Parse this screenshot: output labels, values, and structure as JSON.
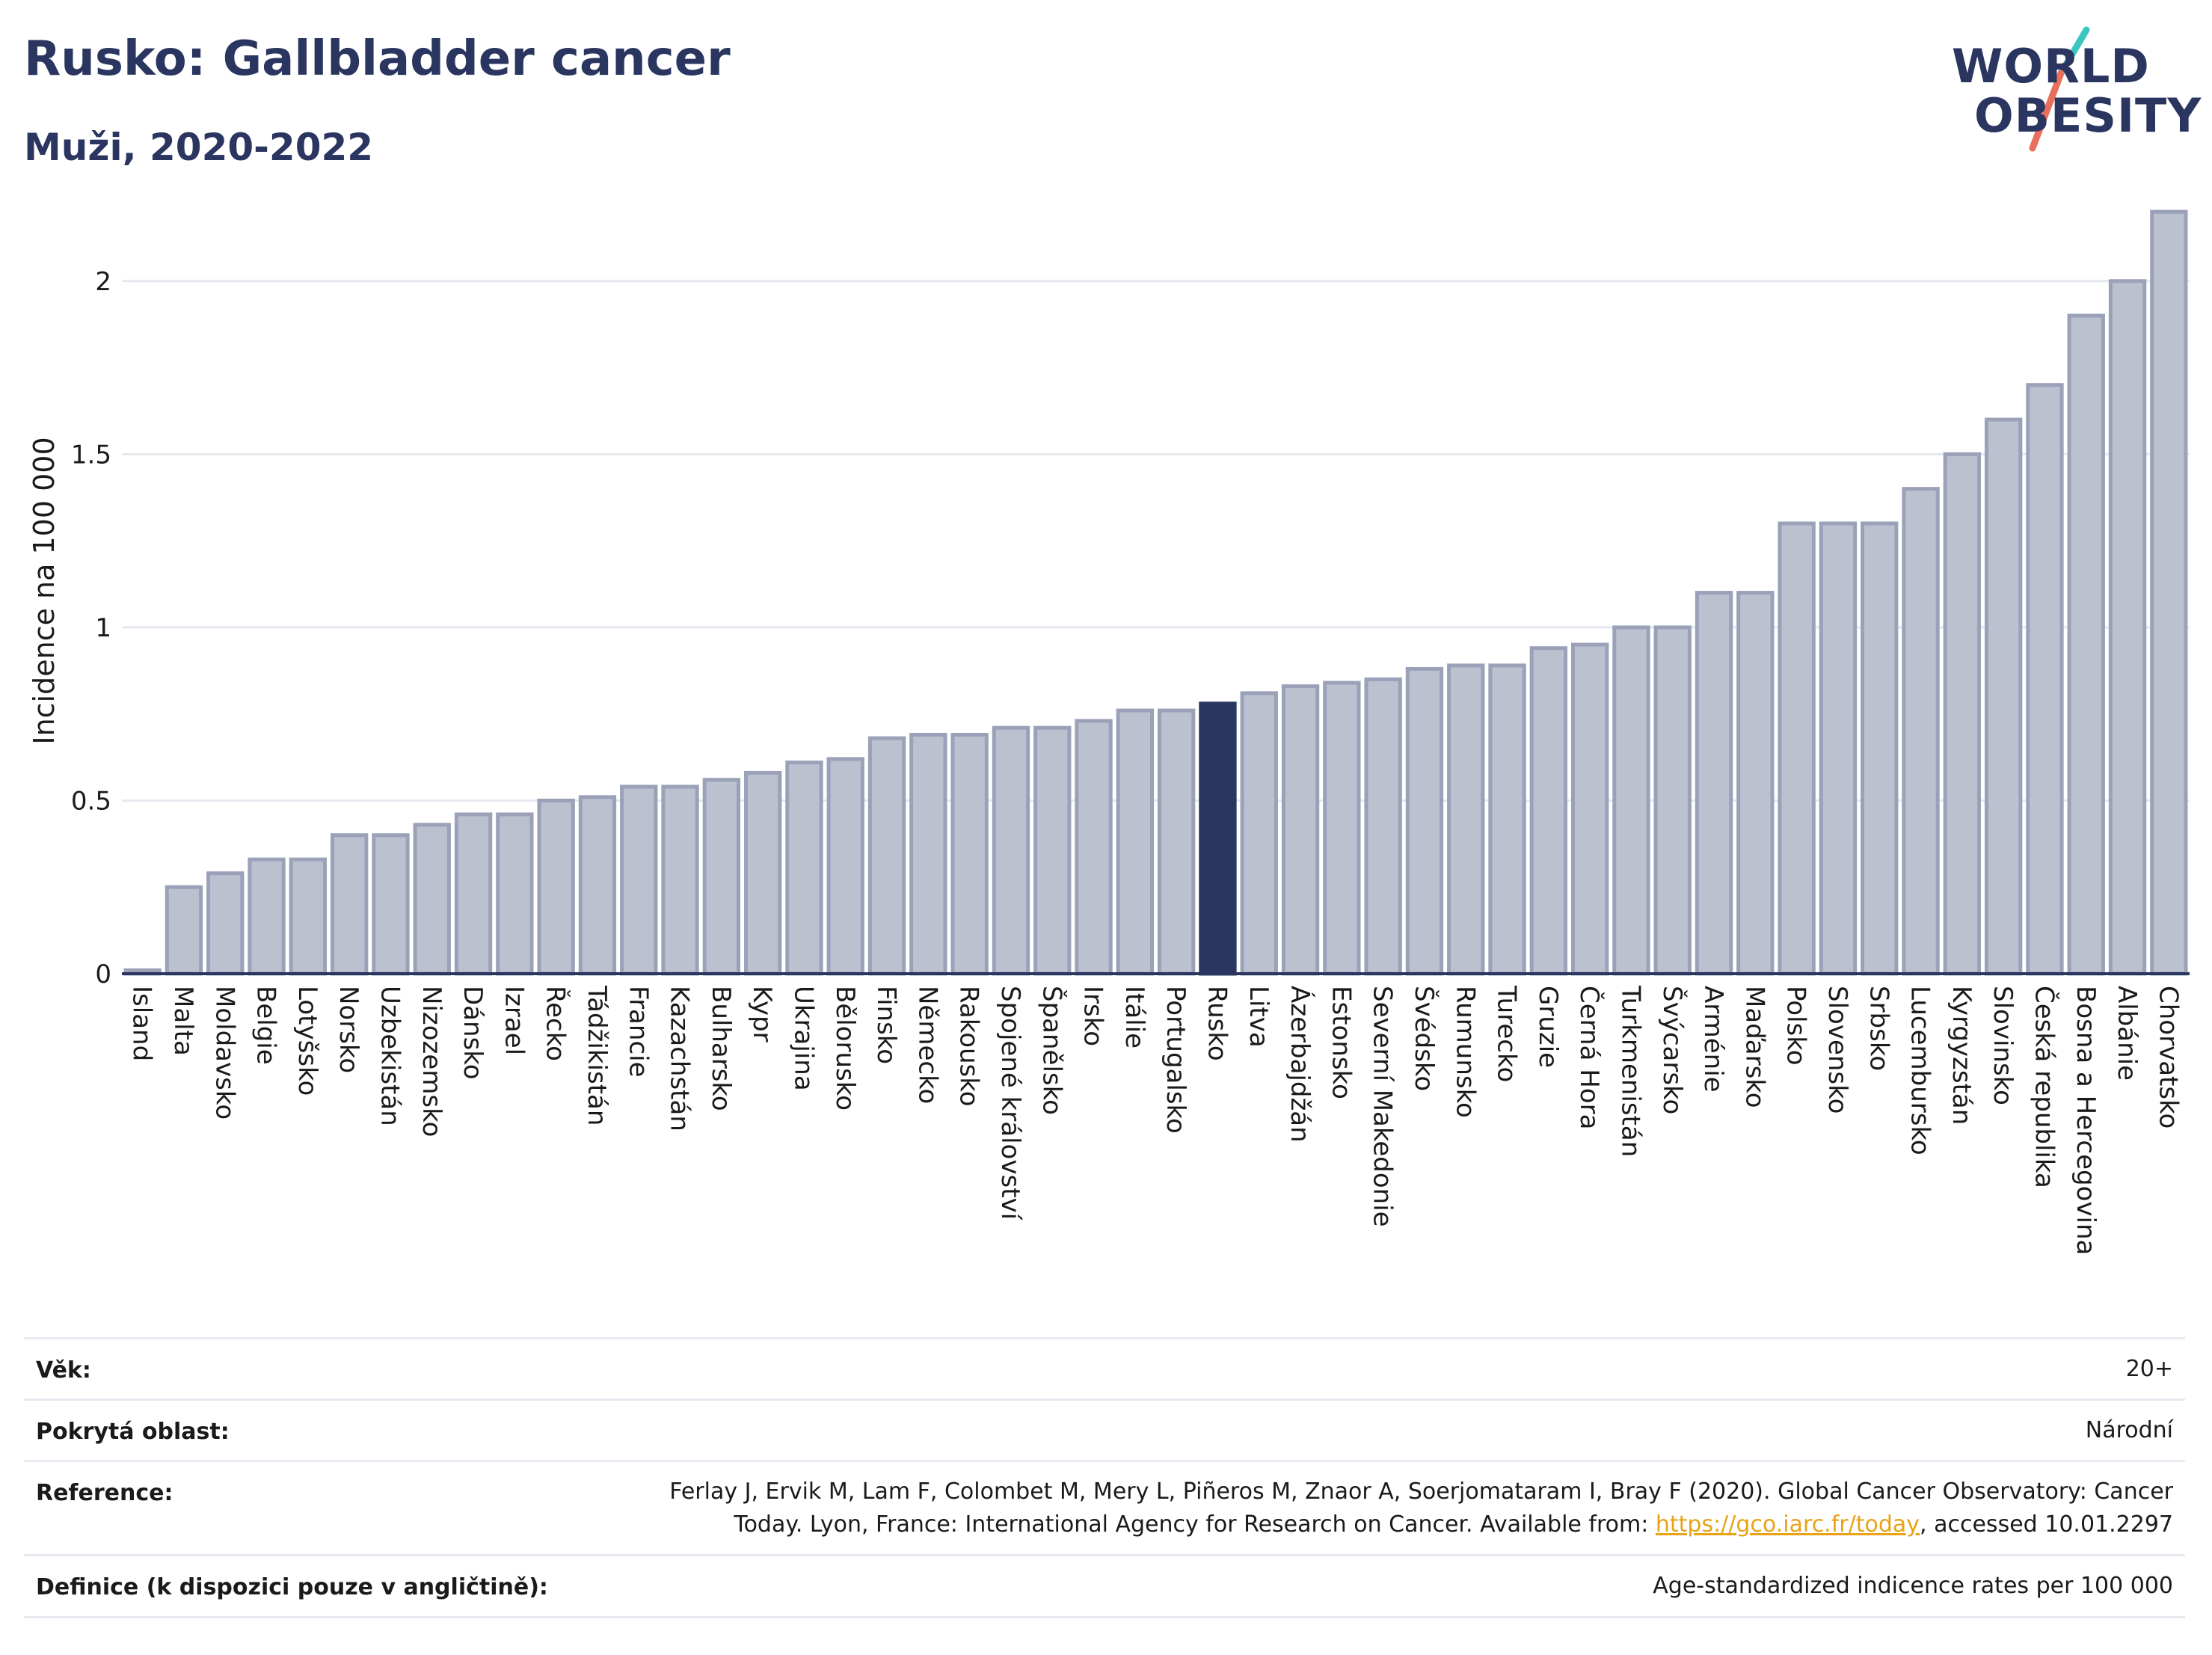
{
  "header": {
    "title": "Rusko: Gallbladder cancer",
    "subtitle": "Muži, 2020-2022"
  },
  "logo": {
    "line1": "WORLD",
    "line2": "OBESITY"
  },
  "chart_data": {
    "type": "bar",
    "title": "Rusko: Gallbladder cancer",
    "subtitle": "Muži, 2020-2022",
    "ylabel": "Incidence na 100 000",
    "xlabel": "",
    "ylim": [
      0,
      2.25
    ],
    "yticks": [
      0,
      0.5,
      1,
      1.5,
      2
    ],
    "ytick_labels": [
      "0",
      "0.5",
      "1",
      "1.5",
      "2"
    ],
    "grid": true,
    "highlight": "Rusko",
    "highlight_color": "#2a3560",
    "bar_color": "#bcc1d0",
    "bar_border_color": "#9aa1b8",
    "categories": [
      "Island",
      "Malta",
      "Moldavsko",
      "Belgie",
      "Lotyšsko",
      "Norsko",
      "Uzbekistán",
      "Nizozemsko",
      "Dánsko",
      "Izrael",
      "Řecko",
      "Tádžikistán",
      "Francie",
      "Kazachstán",
      "Bulharsko",
      "Kypr",
      "Ukrajina",
      "Bělorusko",
      "Finsko",
      "Německo",
      "Rakousko",
      "Spojené království",
      "Španělsko",
      "Irsko",
      "Itálie",
      "Portugalsko",
      "Rusko",
      "Litva",
      "Ázerbajdžán",
      "Estonsko",
      "Severní Makedonie",
      "Švédsko",
      "Rumunsko",
      "Turecko",
      "Gruzie",
      "Černá Hora",
      "Turkmenistán",
      "Švýcarsko",
      "Arménie",
      "Maďarsko",
      "Polsko",
      "Slovensko",
      "Srbsko",
      "Lucembursko",
      "Kyrgyzstán",
      "Slovinsko",
      "Česká republika",
      "Bosna a Hercegovina",
      "Albánie",
      "Chorvatsko"
    ],
    "values": [
      0.01,
      0.25,
      0.29,
      0.33,
      0.33,
      0.4,
      0.4,
      0.43,
      0.46,
      0.46,
      0.5,
      0.51,
      0.54,
      0.54,
      0.56,
      0.58,
      0.61,
      0.62,
      0.68,
      0.69,
      0.69,
      0.71,
      0.71,
      0.73,
      0.76,
      0.76,
      0.78,
      0.81,
      0.83,
      0.84,
      0.85,
      0.88,
      0.89,
      0.89,
      0.94,
      0.95,
      1.0,
      1.0,
      1.1,
      1.1,
      1.3,
      1.3,
      1.3,
      1.4,
      1.5,
      1.6,
      1.7,
      1.9,
      2.0,
      2.2
    ]
  },
  "meta": {
    "rows": [
      {
        "label": "Věk:",
        "value": "20+"
      },
      {
        "label": "Pokrytá oblast:",
        "value": "Národní"
      },
      {
        "label": "Reference:",
        "value_line1": "Ferlay J, Ervik M, Lam F, Colombet M, Mery L, Piñeros M, Znaor A, Soerjomataram I, Bray F (2020). Global Cancer Observatory: Cancer",
        "value_line2_pre": "Today. Lyon, France: International Agency for Research on Cancer. Available from: ",
        "link": "https://gco.iarc.fr/today",
        "value_line2_post": ", accessed 10.01.2297"
      },
      {
        "label": "Definice (k dispozici pouze v angličtině):",
        "value": "Age-standardized indicence rates per 100 000"
      }
    ]
  }
}
